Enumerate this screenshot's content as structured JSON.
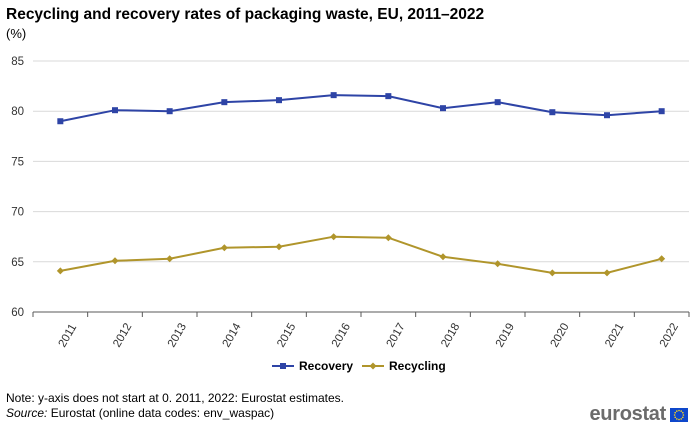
{
  "header": {
    "title": "Recycling and recovery rates of packaging waste, EU, 2011–2022",
    "unit": "(%)"
  },
  "chart_data": {
    "type": "line",
    "title": "Recycling and recovery rates of packaging waste, EU, 2011–2022",
    "ylabel": "(%)",
    "xlabel": "",
    "categories": [
      "2011",
      "2012",
      "2013",
      "2014",
      "2015",
      "2016",
      "2017",
      "2018",
      "2019",
      "2020",
      "2021",
      "2022"
    ],
    "ylim": [
      60,
      85
    ],
    "yticks": [
      60,
      65,
      70,
      75,
      80,
      85
    ],
    "grid": true,
    "legend_position": "bottom-center",
    "series": [
      {
        "name": "Recovery",
        "color": "#2e44a6",
        "marker": "square",
        "values": [
          79.0,
          80.1,
          80.0,
          80.9,
          81.1,
          81.6,
          81.5,
          80.3,
          80.9,
          79.9,
          79.6,
          80.0
        ]
      },
      {
        "name": "Recycling",
        "color": "#b0952b",
        "marker": "diamond",
        "values": [
          64.1,
          65.1,
          65.3,
          66.4,
          66.5,
          67.5,
          67.4,
          65.5,
          64.8,
          63.9,
          63.9,
          65.3
        ]
      }
    ]
  },
  "footer": {
    "note": "Note: y-axis does not start at 0. 2011, 2022: Eurostat estimates.",
    "source_label": "Source:",
    "source_text": " Eurostat (online data codes: env_waspac)",
    "logo_text": "eurostat"
  }
}
